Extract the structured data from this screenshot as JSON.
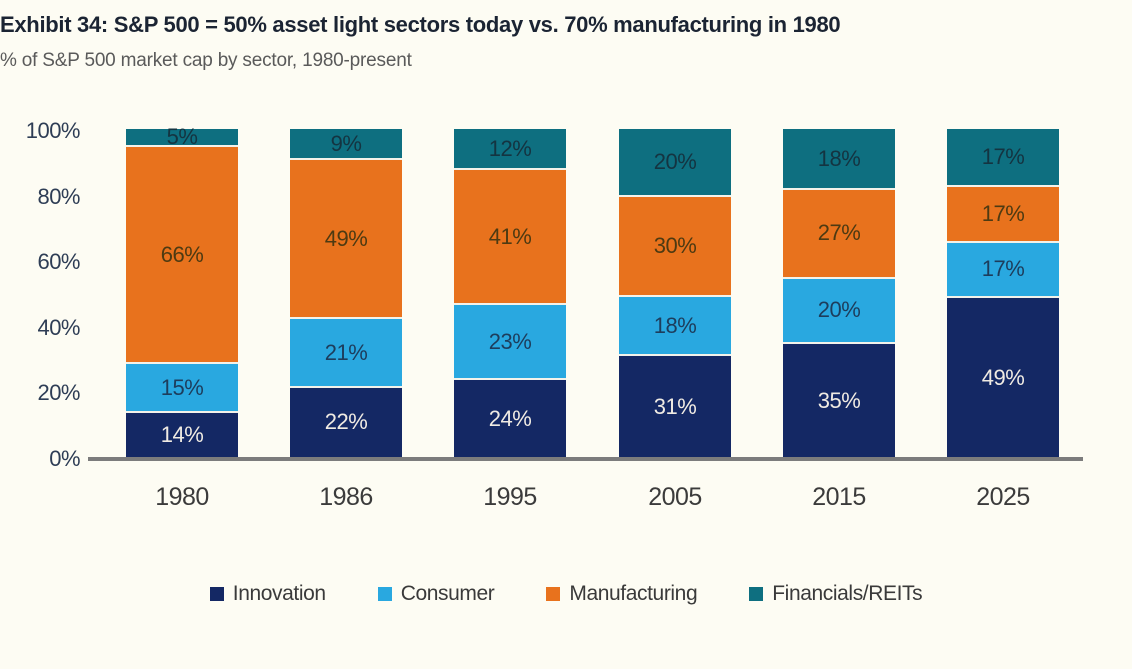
{
  "header": {
    "title": "Exhibit 34: S&P 500 = 50% asset light sectors today vs. 70% manufacturing in 1980",
    "subtitle": "% of S&P 500 market cap by sector, 1980-present"
  },
  "colors": {
    "background": "#fdfcf3",
    "baseline": "#7c7c7c",
    "title": "#1b2433",
    "subtitle": "#5a5a5a",
    "axis_labels": "#2e3d55",
    "x_labels": "#3b3b3b",
    "legend_text": "#3a3a3a"
  },
  "chart_data": {
    "type": "bar",
    "stacked": true,
    "title": "Exhibit 34: S&P 500 = 50% asset light sectors today vs. 70% manufacturing in 1980",
    "subtitle": "% of S&P 500 market cap by sector, 1980-present",
    "xlabel": "",
    "ylabel": "",
    "ylim": [
      0,
      100
    ],
    "grid": false,
    "legend_position": "bottom",
    "value_suffix": "%",
    "categories": [
      "1980",
      "1986",
      "1995",
      "2005",
      "2015",
      "2025"
    ],
    "y_ticks": [
      {
        "label": "0%",
        "value": 0
      },
      {
        "label": "20%",
        "value": 20
      },
      {
        "label": "40%",
        "value": 40
      },
      {
        "label": "60%",
        "value": 60
      },
      {
        "label": "80%",
        "value": 80
      },
      {
        "label": "100%",
        "value": 100
      }
    ],
    "series": [
      {
        "name": "Innovation",
        "color": "#142864",
        "label_color": "#f0ebe3",
        "values": [
          14,
          22,
          24,
          31,
          35,
          49
        ]
      },
      {
        "name": "Consumer",
        "color": "#29a8e0",
        "label_color": "#1d3d5c",
        "values": [
          15,
          21,
          23,
          18,
          20,
          17
        ]
      },
      {
        "name": "Manufacturing",
        "color": "#e8721d",
        "label_color": "#4d3a12",
        "values": [
          66,
          49,
          41,
          30,
          27,
          17
        ]
      },
      {
        "name": "Financials/REITs",
        "color": "#0e6f80",
        "label_color": "#143441",
        "values": [
          5,
          9,
          12,
          20,
          18,
          17
        ]
      }
    ]
  },
  "layout_hints": {
    "segment_label_format": "value%"
  }
}
